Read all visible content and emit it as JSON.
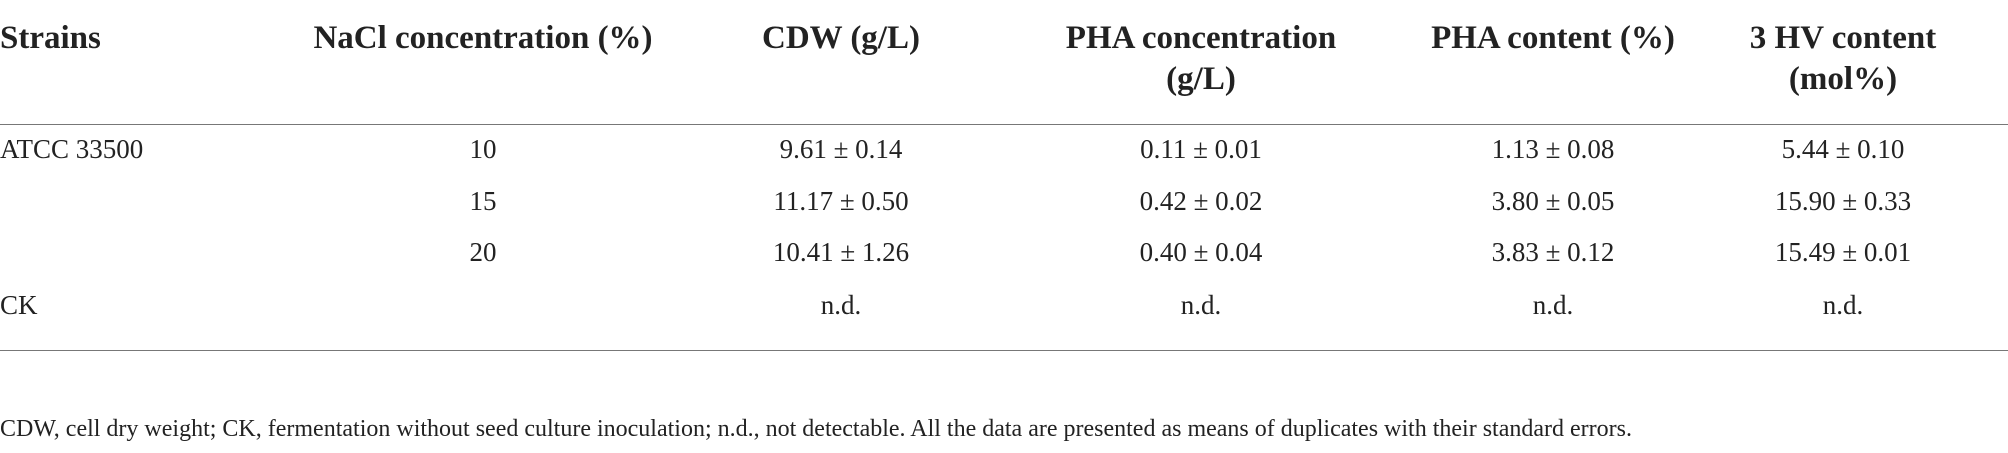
{
  "table": {
    "headers": [
      "Strains",
      "NaCl concentration (%)",
      "CDW (g/L)",
      "PHA concentration (g/L)",
      "PHA content (%)",
      "3 HV content (mol%)"
    ],
    "rows": [
      [
        "ATCC 33500",
        "10",
        "9.61 ± 0.14",
        "0.11 ± 0.01",
        "1.13 ± 0.08",
        "5.44 ± 0.10"
      ],
      [
        null,
        "15",
        "11.17 ± 0.50",
        "0.42 ± 0.02",
        "3.80 ± 0.05",
        "15.90 ± 0.33"
      ],
      [
        null,
        "20",
        "10.41 ± 1.26",
        "0.40 ± 0.04",
        "3.83 ± 0.12",
        "15.49 ± 0.01"
      ],
      [
        "CK",
        null,
        "n.d.",
        "n.d.",
        "n.d.",
        "n.d."
      ]
    ],
    "footnote": "CDW, cell dry weight; CK, fermentation without seed culture inoculation; n.d., not detectable. All the data are presented as means of duplicates with their standard errors."
  }
}
